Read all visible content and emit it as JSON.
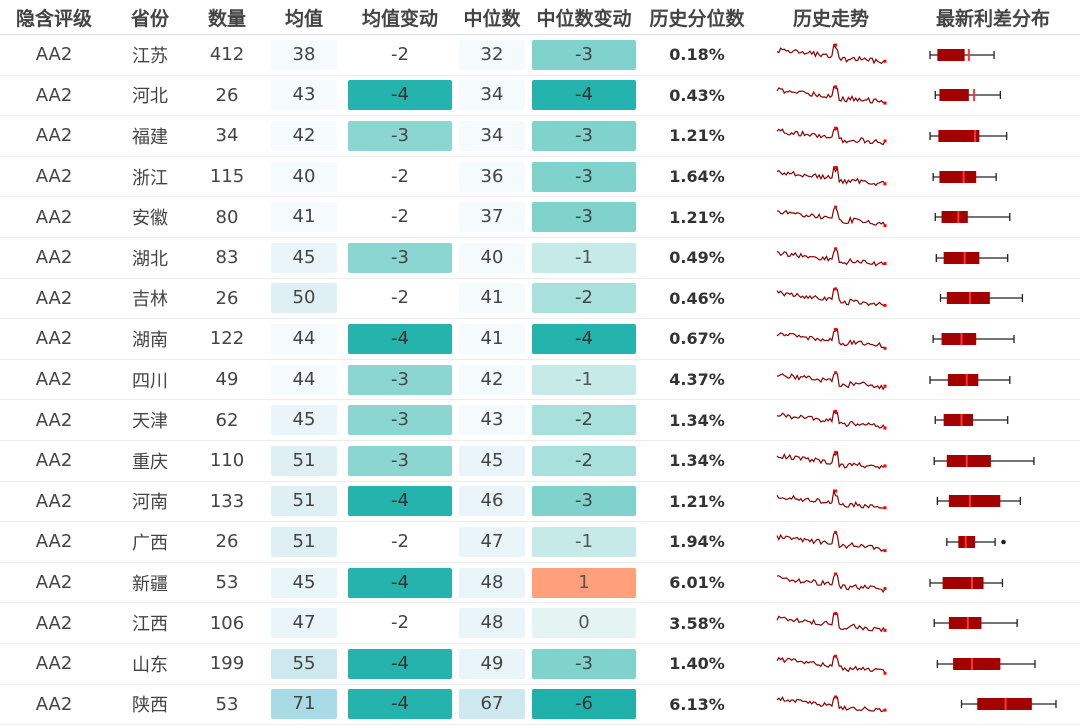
{
  "headers": [
    "隐含评级",
    "省份",
    "数量",
    "均值",
    "均值变动",
    "中位数",
    "中位数变动",
    "历史分位数",
    "历史走势",
    "最新利差分布"
  ],
  "rows": [
    {
      "rating": "AA2",
      "province": "江苏",
      "count": "412",
      "mean": "38",
      "mean_change": "-2",
      "median": "32",
      "median_change": "-3",
      "percentile": "0.18%",
      "bp": [
        0.0,
        0.07,
        0.33,
        0.37,
        0.61
      ]
    },
    {
      "rating": "AA2",
      "province": "河北",
      "count": "26",
      "mean": "43",
      "mean_change": "-4",
      "median": "34",
      "median_change": "-4",
      "percentile": "0.43%",
      "bp": [
        0.05,
        0.09,
        0.37,
        0.42,
        0.67
      ]
    },
    {
      "rating": "AA2",
      "province": "福建",
      "count": "34",
      "mean": "42",
      "mean_change": "-3",
      "median": "34",
      "median_change": "-3",
      "percentile": "1.21%",
      "bp": [
        0.0,
        0.08,
        0.47,
        0.43,
        0.73
      ]
    },
    {
      "rating": "AA2",
      "province": "浙江",
      "count": "115",
      "mean": "40",
      "mean_change": "-2",
      "median": "36",
      "median_change": "-3",
      "percentile": "1.64%",
      "bp": [
        0.03,
        0.09,
        0.44,
        0.32,
        0.63
      ]
    },
    {
      "rating": "AA2",
      "province": "安徽",
      "count": "80",
      "mean": "41",
      "mean_change": "-2",
      "median": "37",
      "median_change": "-3",
      "percentile": "1.21%",
      "bp": [
        0.05,
        0.11,
        0.36,
        0.27,
        0.76
      ]
    },
    {
      "rating": "AA2",
      "province": "湖北",
      "count": "83",
      "mean": "45",
      "mean_change": "-3",
      "median": "40",
      "median_change": "-1",
      "percentile": "0.49%",
      "bp": [
        0.06,
        0.13,
        0.47,
        0.33,
        0.74
      ]
    },
    {
      "rating": "AA2",
      "province": "吉林",
      "count": "26",
      "mean": "50",
      "mean_change": "-2",
      "median": "41",
      "median_change": "-2",
      "percentile": "0.46%",
      "bp": [
        0.1,
        0.16,
        0.57,
        0.38,
        0.88
      ]
    },
    {
      "rating": "AA2",
      "province": "湖南",
      "count": "122",
      "mean": "44",
      "mean_change": "-4",
      "median": "41",
      "median_change": "-4",
      "percentile": "0.67%",
      "bp": [
        0.03,
        0.11,
        0.44,
        0.3,
        0.8
      ]
    },
    {
      "rating": "AA2",
      "province": "四川",
      "count": "49",
      "mean": "44",
      "mean_change": "-3",
      "median": "42",
      "median_change": "-1",
      "percentile": "4.37%",
      "bp": [
        0.0,
        0.17,
        0.46,
        0.35,
        0.76
      ]
    },
    {
      "rating": "AA2",
      "province": "天津",
      "count": "62",
      "mean": "45",
      "mean_change": "-3",
      "median": "43",
      "median_change": "-2",
      "percentile": "1.34%",
      "bp": [
        0.05,
        0.13,
        0.41,
        0.3,
        0.74
      ]
    },
    {
      "rating": "AA2",
      "province": "重庆",
      "count": "110",
      "mean": "51",
      "mean_change": "-3",
      "median": "45",
      "median_change": "-2",
      "percentile": "1.34%",
      "bp": [
        0.04,
        0.16,
        0.58,
        0.35,
        0.99
      ]
    },
    {
      "rating": "AA2",
      "province": "河南",
      "count": "133",
      "mean": "51",
      "mean_change": "-4",
      "median": "46",
      "median_change": "-3",
      "percentile": "1.21%",
      "bp": [
        0.07,
        0.18,
        0.67,
        0.38,
        0.86
      ]
    },
    {
      "rating": "AA2",
      "province": "广西",
      "count": "26",
      "mean": "51",
      "mean_change": "-2",
      "median": "47",
      "median_change": "-1",
      "percentile": "1.94%",
      "bp": [
        0.16,
        0.27,
        0.43,
        0.34,
        0.62
      ],
      "outlier": 0.7
    },
    {
      "rating": "AA2",
      "province": "新疆",
      "count": "53",
      "mean": "45",
      "mean_change": "-4",
      "median": "48",
      "median_change": "1",
      "percentile": "6.01%",
      "bp": [
        0.0,
        0.12,
        0.51,
        0.4,
        0.69
      ]
    },
    {
      "rating": "AA2",
      "province": "江西",
      "count": "106",
      "mean": "47",
      "mean_change": "-2",
      "median": "48",
      "median_change": "0",
      "percentile": "3.58%",
      "bp": [
        0.04,
        0.18,
        0.49,
        0.36,
        0.83
      ]
    },
    {
      "rating": "AA2",
      "province": "山东",
      "count": "199",
      "mean": "55",
      "mean_change": "-4",
      "median": "49",
      "median_change": "-3",
      "percentile": "1.40%",
      "bp": [
        0.07,
        0.22,
        0.67,
        0.4,
        1.0
      ]
    },
    {
      "rating": "AA2",
      "province": "陕西",
      "count": "53",
      "mean": "71",
      "mean_change": "-4",
      "median": "67",
      "median_change": "-6",
      "percentile": "6.13%",
      "bp": [
        0.3,
        0.45,
        0.97,
        0.72,
        1.2
      ]
    }
  ],
  "colors": {
    "spark": "#8b0000",
    "spark_dot": "#ff0000",
    "box_fill": "#a30000",
    "box_median": "#ff3333",
    "whisker": "#222222"
  }
}
